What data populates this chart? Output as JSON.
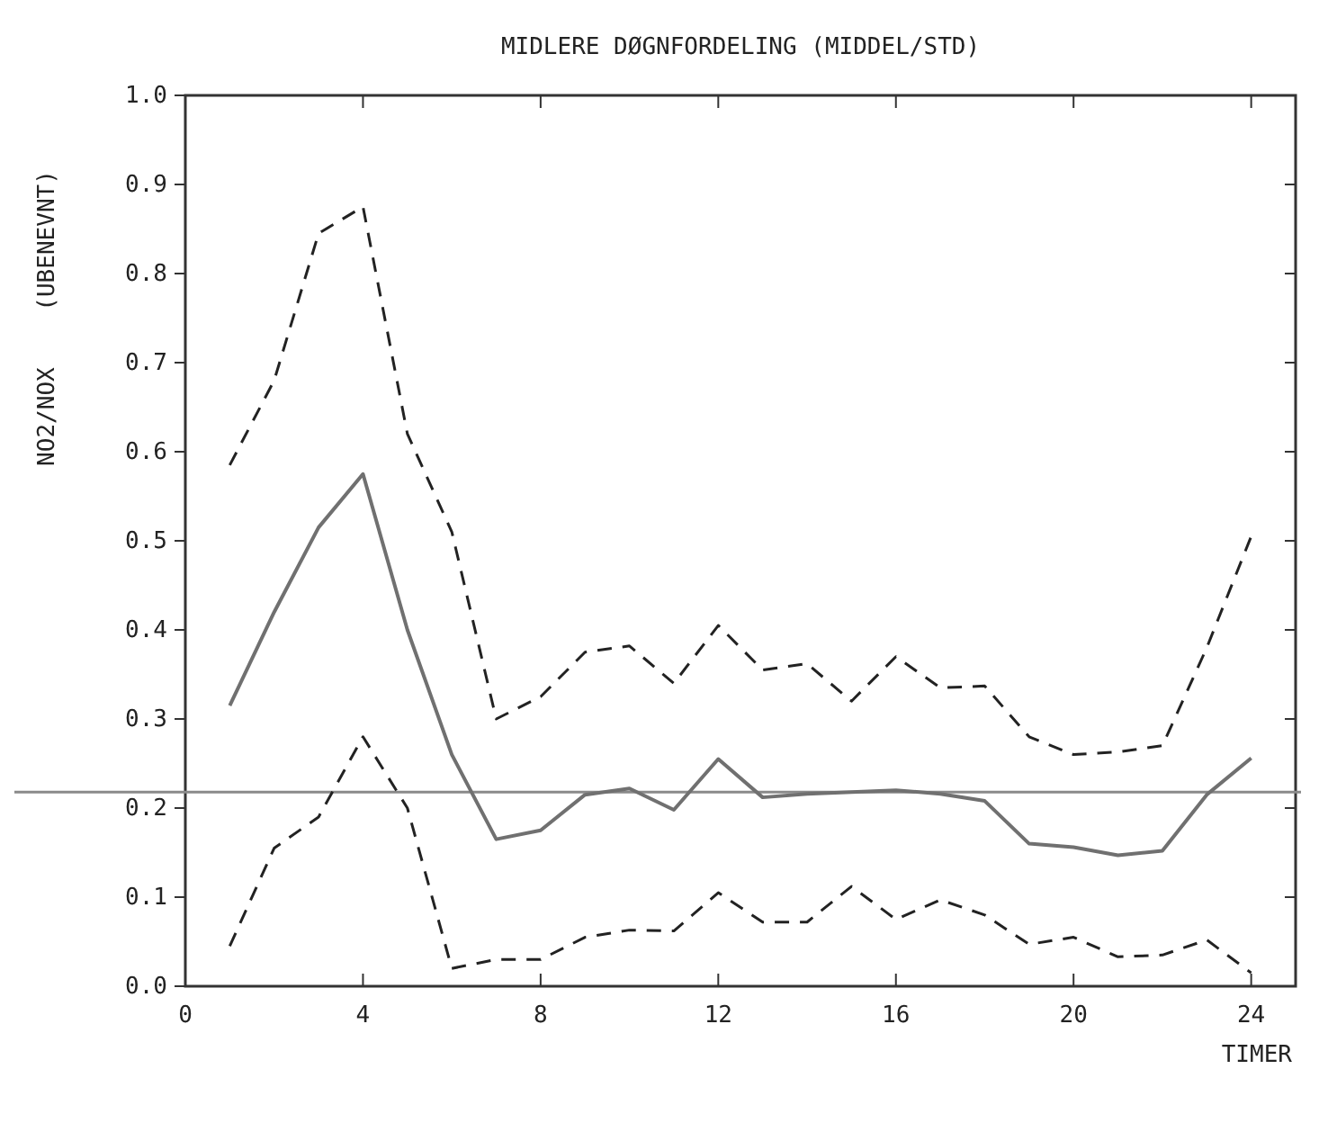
{
  "chart_data": {
    "type": "line",
    "title": "MIDLERE DØGNFORDELING (MIDDEL/STD)",
    "xlabel": "TIMER",
    "ylabel": "NO2/NOX    (UBENEVNT)",
    "x": [
      1,
      2,
      3,
      4,
      5,
      6,
      7,
      8,
      9,
      10,
      11,
      12,
      13,
      14,
      15,
      16,
      17,
      18,
      19,
      20,
      21,
      22,
      23,
      24
    ],
    "series": [
      {
        "color": "#707070",
        "line_style": "solid",
        "values": [
          0.315,
          0.42,
          0.515,
          0.575,
          0.4,
          0.26,
          0.165,
          0.175,
          0.215,
          0.222,
          0.198,
          0.255,
          0.212,
          0.216,
          0.218,
          0.22,
          0.216,
          0.208,
          0.16,
          0.156,
          0.147,
          0.152,
          0.215,
          0.256
        ]
      },
      {
        "color": "#222222",
        "line_style": "dashed",
        "values": [
          0.585,
          0.68,
          0.845,
          0.875,
          0.62,
          0.51,
          0.3,
          0.325,
          0.375,
          0.382,
          0.34,
          0.405,
          0.355,
          0.362,
          0.32,
          0.37,
          0.335,
          0.337,
          0.28,
          0.26,
          0.263,
          0.27,
          0.38,
          0.505
        ]
      },
      {
        "color": "#222222",
        "line_style": "dashed",
        "values": [
          0.045,
          0.155,
          0.19,
          0.28,
          0.2,
          0.02,
          0.03,
          0.03,
          0.055,
          0.063,
          0.062,
          0.105,
          0.072,
          0.072,
          0.112,
          0.075,
          0.097,
          0.08,
          0.047,
          0.055,
          0.033,
          0.035,
          0.052,
          0.015
        ]
      }
    ],
    "xlim": [
      0,
      25
    ],
    "xticks": [
      0,
      4,
      8,
      12,
      16,
      20,
      24
    ],
    "ylim": [
      0,
      1
    ],
    "yticks": [
      {
        "value": 0,
        "label": "0.0"
      },
      0.1,
      0.2,
      0.3,
      0.4,
      0.5,
      0.6,
      0.7,
      0.8,
      0.9,
      {
        "value": 1,
        "label": "1.0"
      }
    ],
    "ref_lines": [
      {
        "axis": "y",
        "value": 0.218,
        "color": "#8a8a8a"
      }
    ],
    "grid": false
  }
}
